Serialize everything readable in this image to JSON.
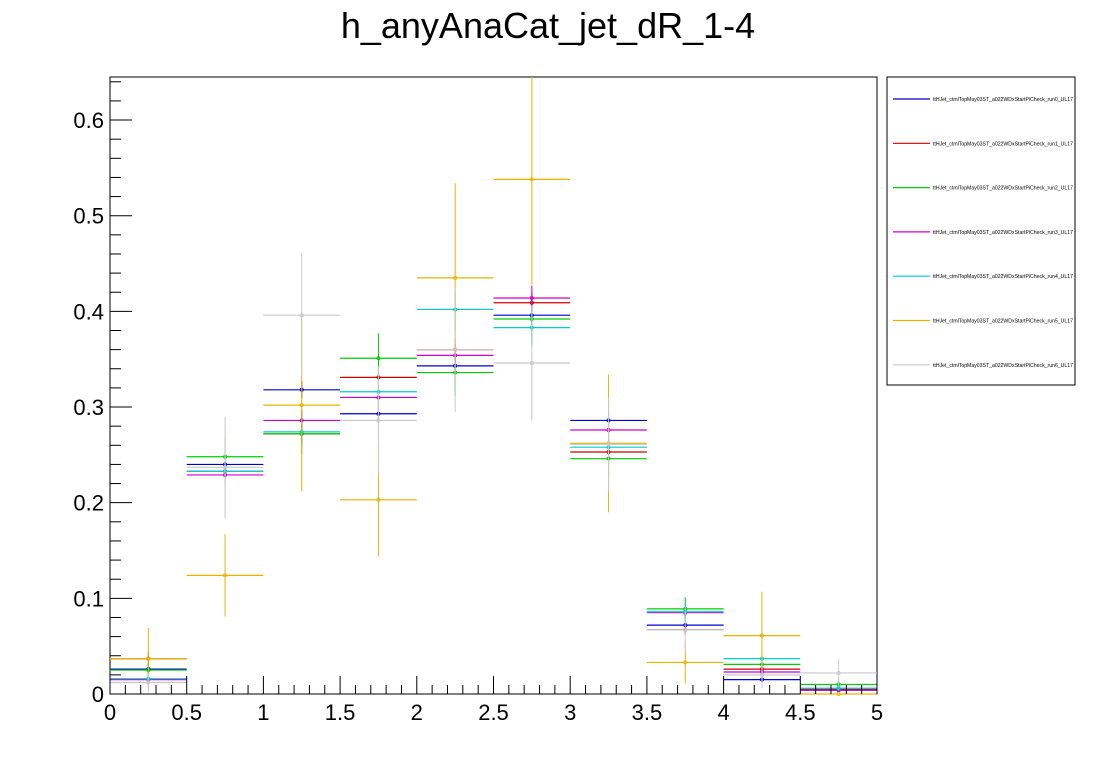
{
  "chart_data": {
    "type": "histogram",
    "title": "h_anyAnaCat_jet_dR_1-4",
    "xlabel": "",
    "ylabel": "",
    "xlim": [
      0,
      5
    ],
    "ylim": [
      0,
      0.645
    ],
    "grid": false,
    "legend_position": "top-right, outside plot",
    "bin_edges": [
      0,
      0.5,
      1,
      1.5,
      2,
      2.5,
      3,
      3.5,
      4,
      4.5,
      5
    ],
    "x_ticks": [
      0,
      0.5,
      1,
      1.5,
      2,
      2.5,
      3,
      3.5,
      4,
      4.5,
      5
    ],
    "x_tick_labels": [
      "0",
      "0.5",
      "1",
      "1.5",
      "2",
      "2.5",
      "3",
      "3.5",
      "4",
      "4.5",
      "5"
    ],
    "y_ticks": [
      0,
      0.1,
      0.2,
      0.3,
      0.4,
      0.5,
      0.6
    ],
    "y_tick_labels": [
      "0",
      "0.1",
      "0.2",
      "0.3",
      "0.4",
      "0.5",
      "0.6"
    ],
    "series": [
      {
        "name": "ttHJet_ctmlTopMay03ST_a022WDxStartPiCheck_run0_UL17",
        "color": "#0000cc",
        "values": [
          0.026,
          0.24,
          0.318,
          0.293,
          0.343,
          0.396,
          0.286,
          0.072,
          0.015,
          0.004
        ],
        "errors": [
          0.006,
          0.008,
          0.009,
          0.009,
          0.009,
          0.01,
          0.009,
          0.004,
          0.002,
          0.001
        ]
      },
      {
        "name": "ttHJet_ctmlTopMay03ST_a022WDxStartPiCheck_run1_UL17",
        "color": "#cc0000",
        "values": [
          0.037,
          0.233,
          0.272,
          0.331,
          0.36,
          0.409,
          0.253,
          0.067,
          0.026,
          0.005
        ],
        "errors": [
          0.007,
          0.009,
          0.01,
          0.011,
          0.011,
          0.012,
          0.009,
          0.005,
          0.003,
          0.001
        ]
      },
      {
        "name": "ttHJet_ctmlTopMay03ST_a022WDxStartPiCheck_run2_UL17",
        "color": "#00cc00",
        "values": [
          0.025,
          0.248,
          0.272,
          0.351,
          0.336,
          0.392,
          0.246,
          0.089,
          0.031,
          0.01
        ],
        "errors": [
          0.009,
          0.02,
          0.021,
          0.026,
          0.024,
          0.026,
          0.02,
          0.012,
          0.007,
          0.004
        ]
      },
      {
        "name": "ttHJet_ctmlTopMay03ST_a022WDxStartPiCheck_run3_UL17",
        "color": "#cc00cc",
        "values": [
          0.015,
          0.229,
          0.286,
          0.31,
          0.354,
          0.414,
          0.276,
          0.085,
          0.023,
          0.004
        ],
        "errors": [
          0.004,
          0.01,
          0.011,
          0.011,
          0.012,
          0.013,
          0.011,
          0.006,
          0.003,
          0.001
        ]
      },
      {
        "name": "ttHJet_ctmlTopMay03ST_a022WDxStartPiCheck_run4_UL17",
        "color": "#00cccc",
        "values": [
          0.016,
          0.233,
          0.274,
          0.316,
          0.402,
          0.383,
          0.258,
          0.086,
          0.037,
          0.006
        ],
        "errors": [
          0.006,
          0.016,
          0.017,
          0.019,
          0.021,
          0.02,
          0.017,
          0.01,
          0.006,
          0.003
        ]
      },
      {
        "name": "ttHJet_ctmlTopMay03ST_a022WDxStartPiCheck_run5_UL17",
        "color": "#e6b400",
        "values": [
          0.037,
          0.124,
          0.302,
          0.203,
          0.435,
          0.538,
          0.262,
          0.033,
          0.061,
          0.0
        ],
        "errors": [
          0.032,
          0.043,
          0.09,
          0.059,
          0.099,
          0.11,
          0.072,
          0.022,
          0.046,
          0.0
        ]
      },
      {
        "name": "ttHJet_ctmlTopMay03ST_a022WDxStartPiCheck_run6_UL17",
        "color": "#c8c8c8",
        "values": [
          0.012,
          0.237,
          0.396,
          0.286,
          0.36,
          0.346,
          0.261,
          0.067,
          0.02,
          0.022
        ],
        "errors": [
          0.01,
          0.053,
          0.065,
          0.056,
          0.065,
          0.06,
          0.049,
          0.024,
          0.014,
          0.014
        ]
      }
    ]
  }
}
